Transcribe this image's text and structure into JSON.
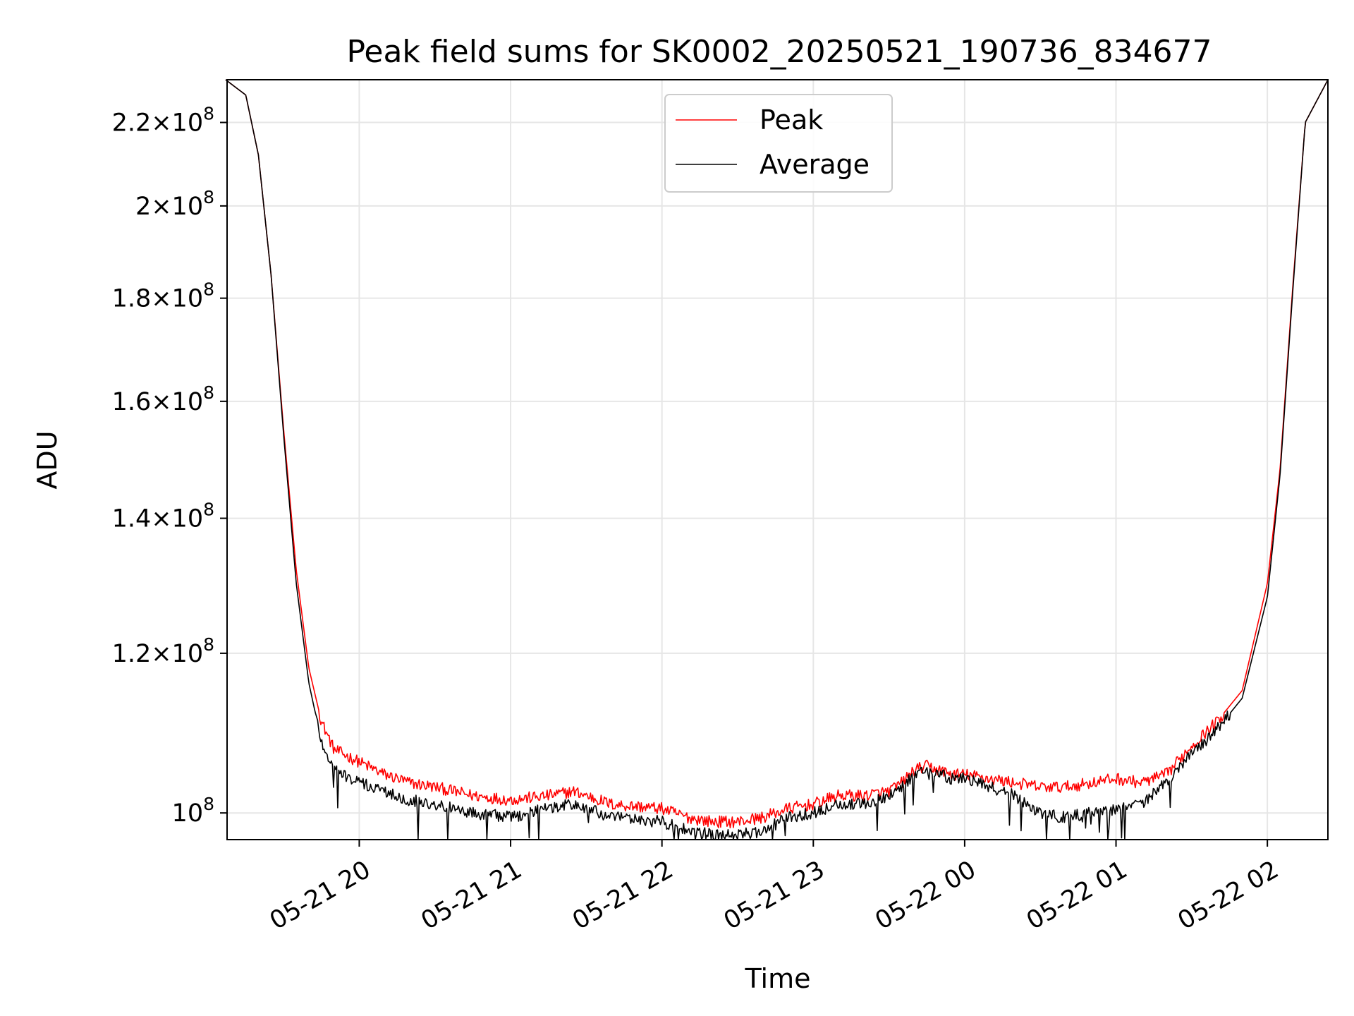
{
  "chart_data": {
    "type": "line",
    "title": "Peak field sums for SK0002_20250521_190736_834677",
    "xlabel": "Time",
    "ylabel": "ADU",
    "yscale": "log",
    "xlim": [
      "2025-05-21 19:07:36",
      "2025-05-22 02:24:00"
    ],
    "ylim": [
      97000000.0,
      231000000.0
    ],
    "x_ticks": [
      "2025-05-21 20:00",
      "2025-05-21 21:00",
      "2025-05-21 22:00",
      "2025-05-21 23:00",
      "2025-05-22 00:00",
      "2025-05-22 01:00",
      "2025-05-22 02:00"
    ],
    "x_tick_labels": [
      "05-21 20",
      "05-21 21",
      "05-21 22",
      "05-21 23",
      "05-22 00",
      "05-22 01",
      "05-22 02"
    ],
    "y_ticks": [
      100000000.0,
      120000000.0,
      140000000.0,
      160000000.0,
      180000000.0,
      200000000.0,
      220000000.0
    ],
    "y_tick_labels": [
      {
        "mant": "",
        "base": "10",
        "exp": "8"
      },
      {
        "mant": "1.2",
        "base": "10",
        "exp": "8"
      },
      {
        "mant": "1.4",
        "base": "10",
        "exp": "8"
      },
      {
        "mant": "1.6",
        "base": "10",
        "exp": "8"
      },
      {
        "mant": "1.8",
        "base": "10",
        "exp": "8"
      },
      {
        "mant": "2",
        "base": "10",
        "exp": "8"
      },
      {
        "mant": "2.2",
        "base": "10",
        "exp": "8"
      }
    ],
    "grid": true,
    "legend_position": "top-center",
    "series": [
      {
        "name": "Peak",
        "color": "#ff0000",
        "x": [
          "2025-05-21 19:07",
          "2025-05-21 19:15",
          "2025-05-21 19:20",
          "2025-05-21 19:25",
          "2025-05-21 19:30",
          "2025-05-21 19:35",
          "2025-05-21 19:40",
          "2025-05-21 19:45",
          "2025-05-21 19:50",
          "2025-05-21 20:00",
          "2025-05-21 20:10",
          "2025-05-21 20:20",
          "2025-05-21 20:30",
          "2025-05-21 20:45",
          "2025-05-21 21:00",
          "2025-05-21 21:15",
          "2025-05-21 21:25",
          "2025-05-21 21:40",
          "2025-05-21 22:00",
          "2025-05-21 22:10",
          "2025-05-21 22:20",
          "2025-05-21 22:30",
          "2025-05-21 22:40",
          "2025-05-21 22:50",
          "2025-05-21 23:00",
          "2025-05-21 23:10",
          "2025-05-21 23:20",
          "2025-05-21 23:30",
          "2025-05-21 23:35",
          "2025-05-21 23:40",
          "2025-05-21 23:45",
          "2025-05-21 23:50",
          "2025-05-21 23:55",
          "2025-05-22 00:00",
          "2025-05-22 00:10",
          "2025-05-22 00:20",
          "2025-05-22 00:30",
          "2025-05-22 00:40",
          "2025-05-22 00:50",
          "2025-05-22 01:00",
          "2025-05-22 01:10",
          "2025-05-22 01:20",
          "2025-05-22 01:30",
          "2025-05-22 01:40",
          "2025-05-22 01:50",
          "2025-05-22 02:00",
          "2025-05-22 02:05",
          "2025-05-22 02:10",
          "2025-05-22 02:15",
          "2025-05-22 02:24"
        ],
        "y": [
          231000000.0,
          227000000.0,
          212000000.0,
          185000000.0,
          155000000.0,
          132000000.0,
          118000000.0,
          111000000.0,
          107500000.0,
          106000000.0,
          104500000.0,
          103500000.0,
          103000000.0,
          102000000.0,
          101500000.0,
          102000000.0,
          102500000.0,
          101000000.0,
          100500000.0,
          99500000.0,
          99000000.0,
          99000000.0,
          99500000.0,
          100500000.0,
          101000000.0,
          102000000.0,
          102000000.0,
          102500000.0,
          103500000.0,
          105000000.0,
          105500000.0,
          105000000.0,
          104500000.0,
          104500000.0,
          104000000.0,
          103500000.0,
          103000000.0,
          103000000.0,
          103500000.0,
          104000000.0,
          103500000.0,
          104500000.0,
          108000000.0,
          111000000.0,
          115000000.0,
          130000000.0,
          148000000.0,
          182000000.0,
          220000000.0,
          231000000.0
        ]
      },
      {
        "name": "Average",
        "color": "#000000",
        "x": [
          "2025-05-21 19:07",
          "2025-05-21 19:15",
          "2025-05-21 19:20",
          "2025-05-21 19:25",
          "2025-05-21 19:30",
          "2025-05-21 19:35",
          "2025-05-21 19:40",
          "2025-05-21 19:45",
          "2025-05-21 19:50",
          "2025-05-21 20:00",
          "2025-05-21 20:10",
          "2025-05-21 20:20",
          "2025-05-21 20:30",
          "2025-05-21 20:45",
          "2025-05-21 21:00",
          "2025-05-21 21:15",
          "2025-05-21 21:25",
          "2025-05-21 21:40",
          "2025-05-21 22:00",
          "2025-05-21 22:10",
          "2025-05-21 22:20",
          "2025-05-21 22:30",
          "2025-05-21 22:40",
          "2025-05-21 22:50",
          "2025-05-21 23:00",
          "2025-05-21 23:10",
          "2025-05-21 23:20",
          "2025-05-21 23:30",
          "2025-05-21 23:35",
          "2025-05-21 23:40",
          "2025-05-21 23:45",
          "2025-05-21 23:50",
          "2025-05-21 23:55",
          "2025-05-22 00:00",
          "2025-05-22 00:10",
          "2025-05-22 00:20",
          "2025-05-22 00:30",
          "2025-05-22 00:40",
          "2025-05-22 00:50",
          "2025-05-22 01:00",
          "2025-05-22 01:10",
          "2025-05-22 01:20",
          "2025-05-22 01:30",
          "2025-05-22 01:40",
          "2025-05-22 01:50",
          "2025-05-22 02:00",
          "2025-05-22 02:05",
          "2025-05-22 02:10",
          "2025-05-22 02:15",
          "2025-05-22 02:24"
        ],
        "y": [
          231000000.0,
          227000000.0,
          212000000.0,
          185000000.0,
          154000000.0,
          130000000.0,
          116000000.0,
          108500000.0,
          105000000.0,
          103500000.0,
          102500000.0,
          101500000.0,
          101000000.0,
          100000000.0,
          99500000.0,
          100500000.0,
          101000000.0,
          99500000.0,
          99000000.0,
          98000000.0,
          97500000.0,
          97500000.0,
          98000000.0,
          99500000.0,
          100000000.0,
          101000000.0,
          101000000.0,
          102000000.0,
          103000000.0,
          104500000.0,
          105000000.0,
          104500000.0,
          104000000.0,
          104000000.0,
          103000000.0,
          102000000.0,
          100000000.0,
          99500000.0,
          100000000.0,
          100500000.0,
          101000000.0,
          103500000.0,
          107000000.0,
          110000000.0,
          114000000.0,
          128000000.0,
          147000000.0,
          181000000.0,
          220000000.0,
          231000000.0
        ]
      }
    ]
  }
}
